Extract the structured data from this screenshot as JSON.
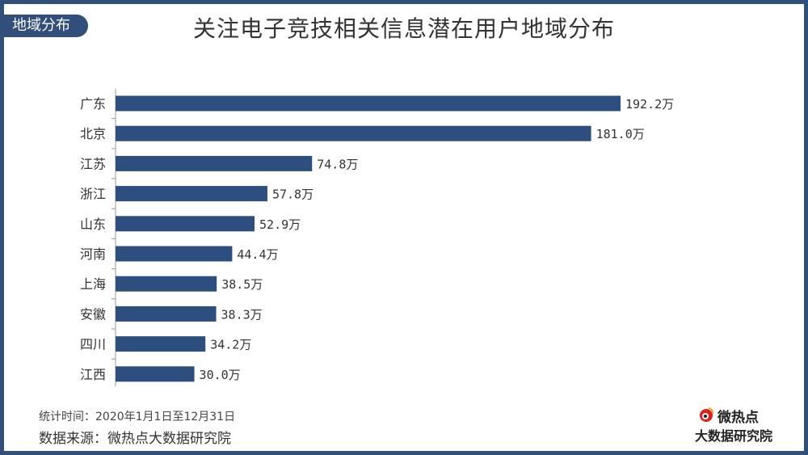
{
  "tag": "地域分布",
  "chart_data": {
    "type": "bar",
    "orientation": "horizontal",
    "title": "关注电子竞技相关信息潜在用户地域分布",
    "categories": [
      "广东",
      "北京",
      "江苏",
      "浙江",
      "山东",
      "河南",
      "上海",
      "安徽",
      "四川",
      "江西"
    ],
    "values": [
      192.2,
      181.0,
      74.8,
      57.8,
      52.9,
      44.4,
      38.5,
      38.3,
      34.2,
      30.0
    ],
    "value_labels": [
      "192.2万",
      "181.0万",
      "74.8万",
      "57.8万",
      "52.9万",
      "44.4万",
      "38.5万",
      "38.3万",
      "34.2万",
      "30.0万"
    ],
    "unit": "万",
    "bar_color": "#2c4f80",
    "axis_color": "#999999",
    "grid": false,
    "legend": "none"
  },
  "footer": {
    "period": "统计时间：2020年1月1日至12月31日",
    "source": "数据来源：微热点大数据研究院"
  },
  "logo": {
    "top": "微热点",
    "bottom": "大数据研究院",
    "icon": "weibo-eye-icon",
    "accent": "#e0201b"
  }
}
